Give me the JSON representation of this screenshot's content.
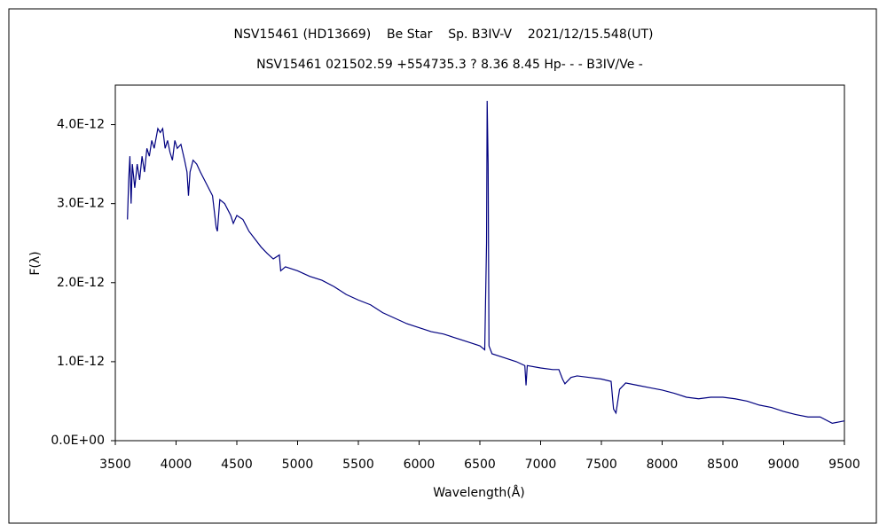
{
  "chart_data": {
    "type": "line",
    "title": "NSV15461 (HD13669)    Be Star    Sp. B3IV-V    2021/12/15.548(UT)",
    "subtitle": "NSV15461 021502.59 +554735.3 ? 8.36 8.45 Hp- - - B3IV/Ve -",
    "x_label": "Wavelength(Å)",
    "y_label": "F(λ)",
    "xlim": [
      3500,
      9500
    ],
    "xticks": [
      3500,
      4000,
      4500,
      5000,
      5500,
      6000,
      6500,
      7000,
      7500,
      8000,
      8500,
      9000,
      9500
    ],
    "ylim": [
      0,
      4.5e-12
    ],
    "yticks": [
      {
        "value": 0,
        "label": "0.0E+00"
      },
      {
        "value": 1e-12,
        "label": "1.0E-12"
      },
      {
        "value": 2e-12,
        "label": "2.0E-12"
      },
      {
        "value": 3e-12,
        "label": "3.0E-12"
      },
      {
        "value": 4e-12,
        "label": "4.0E-12"
      }
    ],
    "grid": false,
    "x": [
      3600,
      3610,
      3620,
      3630,
      3640,
      3660,
      3680,
      3700,
      3720,
      3740,
      3760,
      3780,
      3800,
      3820,
      3850,
      3870,
      3890,
      3910,
      3930,
      3950,
      3970,
      3990,
      4010,
      4040,
      4070,
      4090,
      4102,
      4115,
      4140,
      4170,
      4200,
      4250,
      4300,
      4330,
      4340,
      4360,
      4400,
      4450,
      4471,
      4500,
      4550,
      4600,
      4650,
      4700,
      4750,
      4800,
      4850,
      4861,
      4900,
      5000,
      5100,
      5200,
      5300,
      5400,
      5500,
      5600,
      5700,
      5800,
      5900,
      6000,
      6100,
      6200,
      6300,
      6400,
      6500,
      6540,
      6555,
      6560,
      6568,
      6575,
      6600,
      6700,
      6800,
      6870,
      6880,
      6890,
      7000,
      7100,
      7150,
      7180,
      7200,
      7250,
      7300,
      7400,
      7500,
      7580,
      7600,
      7620,
      7650,
      7700,
      7800,
      7900,
      8000,
      8100,
      8200,
      8300,
      8400,
      8500,
      8600,
      8700,
      8800,
      8900,
      9000,
      9100,
      9200,
      9300,
      9400,
      9500
    ],
    "series": [
      {
        "name": "NSV15461",
        "color": "#000080",
        "values": [
          2.8e-12,
          3.3e-12,
          3.6e-12,
          3e-12,
          3.5e-12,
          3.2e-12,
          3.5e-12,
          3.3e-12,
          3.6e-12,
          3.4e-12,
          3.7e-12,
          3.6e-12,
          3.8e-12,
          3.7e-12,
          3.95e-12,
          3.9e-12,
          3.95e-12,
          3.7e-12,
          3.8e-12,
          3.65e-12,
          3.55e-12,
          3.8e-12,
          3.7e-12,
          3.75e-12,
          3.55e-12,
          3.4e-12,
          3.1e-12,
          3.4e-12,
          3.55e-12,
          3.5e-12,
          3.4e-12,
          3.25e-12,
          3.1e-12,
          2.7e-12,
          2.65e-12,
          3.05e-12,
          3e-12,
          2.85e-12,
          2.75e-12,
          2.85e-12,
          2.8e-12,
          2.65e-12,
          2.55e-12,
          2.45e-12,
          2.37e-12,
          2.3e-12,
          2.35e-12,
          2.15e-12,
          2.2e-12,
          2.15e-12,
          2.08e-12,
          2.03e-12,
          1.95e-12,
          1.85e-12,
          1.78e-12,
          1.72e-12,
          1.62e-12,
          1.55e-12,
          1.48e-12,
          1.43e-12,
          1.38e-12,
          1.35e-12,
          1.3e-12,
          1.25e-12,
          1.2e-12,
          1.15e-12,
          2.5e-12,
          4.3e-12,
          3.5e-12,
          1.2e-12,
          1.1e-12,
          1.05e-12,
          1e-12,
          9.5e-13,
          7e-13,
          9.5e-13,
          9.2e-13,
          9e-13,
          9e-13,
          7.8e-13,
          7.2e-13,
          8e-13,
          8.2e-13,
          8e-13,
          7.8e-13,
          7.5e-13,
          4e-13,
          3.5e-13,
          6.5e-13,
          7.3e-13,
          7e-13,
          6.7e-13,
          6.4e-13,
          6e-13,
          5.5e-13,
          5.3e-13,
          5.5e-13,
          5.5e-13,
          5.3e-13,
          5e-13,
          4.5e-13,
          4.2e-13,
          3.7e-13,
          3.3e-13,
          3e-13,
          3e-13,
          2.2e-13,
          2.5e-13
        ]
      }
    ]
  }
}
